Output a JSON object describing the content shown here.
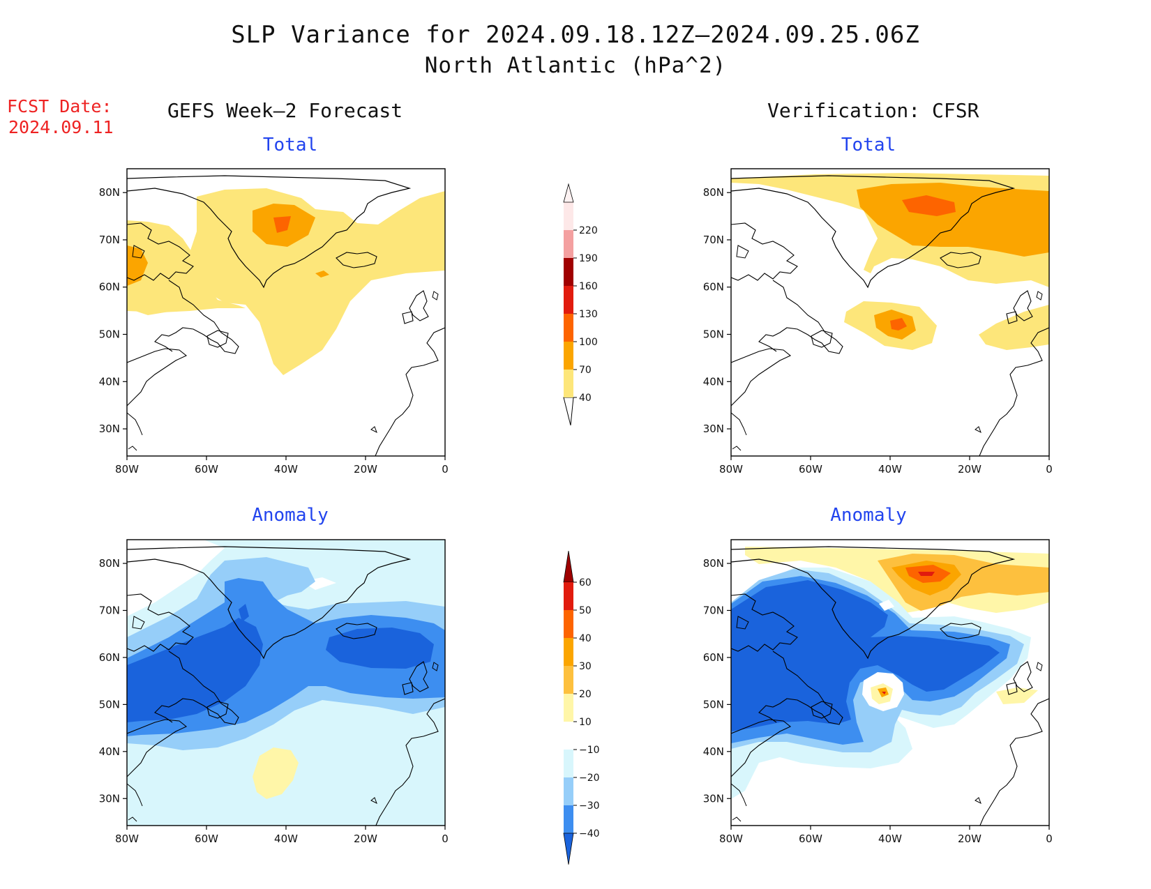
{
  "title": {
    "line1": "SLP Variance for 2024.09.18.12Z–2024.09.25.06Z",
    "line2": "North Atlantic (hPa^2)"
  },
  "fcst": {
    "line1": "FCST Date:",
    "line2": "2024.09.11"
  },
  "columns": {
    "left": "GEFS Week–2 Forecast",
    "right": "Verification: CFSR"
  },
  "panels": {
    "tl": {
      "title": "Total"
    },
    "tr": {
      "title": "Total"
    },
    "bl": {
      "title": "Anomaly"
    },
    "br": {
      "title": "Anomaly"
    }
  },
  "axes": {
    "lon_labels": [
      "80W",
      "60W",
      "40W",
      "20W",
      "0"
    ],
    "lat_labels": [
      "80N",
      "70N",
      "60N",
      "50N",
      "40N",
      "30N"
    ]
  },
  "colorbars": {
    "total": {
      "labels": [
        "40",
        "70",
        "100",
        "130",
        "160",
        "190",
        "220"
      ],
      "colors": [
        "#fde67a",
        "#fba500",
        "#fd6400",
        "#e11b0e",
        "#a00000",
        "#f4a0a0",
        "#fde8e8"
      ]
    },
    "anomaly": {
      "labels": [
        "60",
        "50",
        "40",
        "30",
        "20",
        "10",
        "−10",
        "−20",
        "−30",
        "−40"
      ],
      "colors": [
        "#9e0000",
        "#e11b0e",
        "#fd6400",
        "#fba500",
        "#fdc03e",
        "#fff6a8",
        "#ffffff",
        "#d8f6fc",
        "#96cef9",
        "#3d8ef0",
        "#1a63dc"
      ]
    }
  }
}
